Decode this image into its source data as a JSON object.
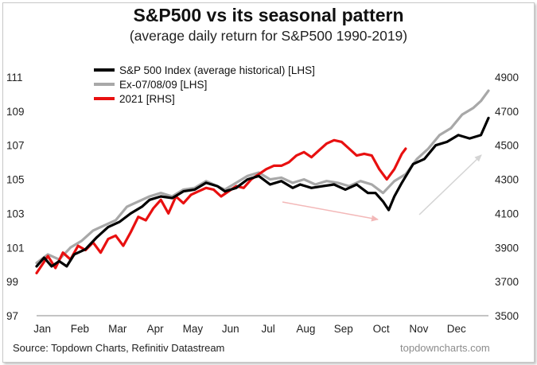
{
  "title": "S&P500 vs its seasonal pattern",
  "subtitle": "(average daily return for S&P500 1990-2019)",
  "source": "Source: Topdown Charts, Refinitiv Datastream",
  "watermark": "topdowncharts.com",
  "chart_data": {
    "type": "line",
    "title": "S&P500 vs its seasonal pattern",
    "subtitle": "(average daily return for S&P500 1990-2019)",
    "categories": [
      "Jan",
      "Feb",
      "Mar",
      "Apr",
      "May",
      "Jun",
      "Jul",
      "Aug",
      "Sep",
      "Oct",
      "Nov",
      "Dec"
    ],
    "ylim_left": [
      97,
      111
    ],
    "yticks_left": [
      97,
      99,
      101,
      103,
      105,
      107,
      109,
      111
    ],
    "ylim_right": [
      3500,
      4900
    ],
    "yticks_right": [
      3500,
      3700,
      3900,
      4100,
      4300,
      4500,
      4700,
      4900
    ],
    "grid": false,
    "legend_position": "top-left",
    "series": [
      {
        "name": "S&P 500 Index (average historical) [LHS]",
        "axis": "left",
        "color": "#000000",
        "x": [
          0,
          0.2,
          0.4,
          0.6,
          0.8,
          1.0,
          1.3,
          1.6,
          1.9,
          2.2,
          2.5,
          2.8,
          3.0,
          3.3,
          3.6,
          3.9,
          4.2,
          4.5,
          4.8,
          5.0,
          5.3,
          5.6,
          5.9,
          6.2,
          6.5,
          6.8,
          7.0,
          7.3,
          7.6,
          7.9,
          8.2,
          8.5,
          8.8,
          9.0,
          9.2,
          9.35,
          9.5,
          9.7,
          10.0,
          10.3,
          10.6,
          10.9,
          11.2,
          11.5,
          11.8,
          12.0
        ],
        "values": [
          99.9,
          100.4,
          99.9,
          100.2,
          99.9,
          100.6,
          100.9,
          101.6,
          102.2,
          102.5,
          103.0,
          103.4,
          103.8,
          104.0,
          103.9,
          104.3,
          104.4,
          104.8,
          104.6,
          104.3,
          104.5,
          105.0,
          105.2,
          104.7,
          104.9,
          104.5,
          104.7,
          104.5,
          104.6,
          104.7,
          104.4,
          104.7,
          104.2,
          104.2,
          103.7,
          103.2,
          104.0,
          104.8,
          105.9,
          106.2,
          107.0,
          107.2,
          107.6,
          107.4,
          107.6,
          108.6
        ]
      },
      {
        "name": "Ex-07/08/09 [LHS]",
        "axis": "left",
        "color": "#a8a8a8",
        "x": [
          0,
          0.3,
          0.6,
          0.9,
          1.2,
          1.5,
          1.8,
          2.1,
          2.4,
          2.7,
          3.0,
          3.3,
          3.6,
          3.9,
          4.2,
          4.5,
          4.8,
          5.0,
          5.3,
          5.6,
          5.9,
          6.2,
          6.5,
          6.8,
          7.1,
          7.4,
          7.7,
          8.0,
          8.3,
          8.6,
          8.9,
          9.2,
          9.5,
          9.8,
          10.1,
          10.4,
          10.7,
          11.0,
          11.3,
          11.6,
          11.8,
          12.0
        ],
        "values": [
          100.1,
          100.6,
          100.3,
          101.0,
          101.4,
          102.0,
          102.3,
          102.6,
          103.4,
          103.7,
          104.0,
          104.2,
          104.0,
          104.4,
          104.5,
          104.9,
          104.6,
          104.4,
          104.8,
          105.2,
          105.4,
          105.0,
          105.1,
          104.8,
          105.0,
          104.7,
          104.9,
          104.8,
          104.6,
          104.9,
          104.7,
          104.2,
          104.9,
          105.3,
          106.2,
          106.8,
          107.6,
          108.0,
          108.8,
          109.2,
          109.6,
          110.2
        ]
      },
      {
        "name": "2021 [RHS]",
        "axis": "right",
        "color": "#e81010",
        "x": [
          0,
          0.15,
          0.3,
          0.5,
          0.7,
          0.9,
          1.1,
          1.3,
          1.5,
          1.7,
          1.9,
          2.1,
          2.3,
          2.5,
          2.7,
          2.9,
          3.1,
          3.3,
          3.5,
          3.7,
          3.9,
          4.1,
          4.3,
          4.5,
          4.7,
          4.9,
          5.1,
          5.3,
          5.5,
          5.7,
          5.9,
          6.1,
          6.3,
          6.5,
          6.7,
          6.9,
          7.1,
          7.3,
          7.5,
          7.7,
          7.9,
          8.1,
          8.3,
          8.5,
          8.7,
          8.9,
          9.1,
          9.3,
          9.5,
          9.7,
          9.8
        ],
        "values": [
          3750,
          3800,
          3850,
          3780,
          3870,
          3830,
          3910,
          3885,
          3930,
          3870,
          3950,
          3970,
          3910,
          3990,
          4080,
          4060,
          4130,
          4180,
          4100,
          4200,
          4160,
          4210,
          4230,
          4250,
          4240,
          4200,
          4230,
          4260,
          4250,
          4300,
          4330,
          4360,
          4380,
          4380,
          4400,
          4440,
          4460,
          4430,
          4470,
          4510,
          4530,
          4520,
          4480,
          4440,
          4450,
          4440,
          4360,
          4300,
          4360,
          4450,
          4480
        ]
      }
    ]
  }
}
